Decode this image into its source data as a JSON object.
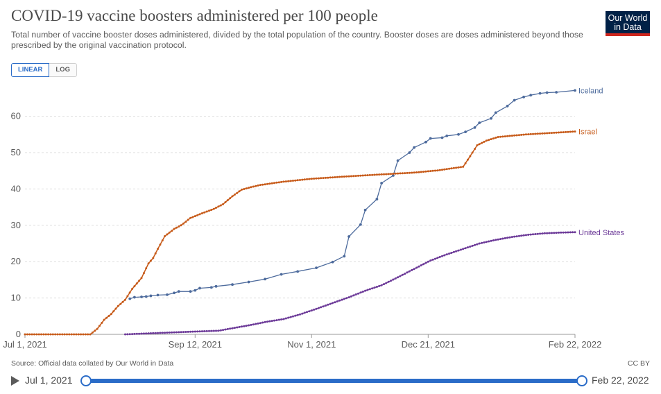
{
  "header": {
    "title": "COVID-19 vaccine boosters administered per 100 people",
    "subtitle": "Total number of vaccine booster doses administered, divided by the total population of the country. Booster doses are doses administered beyond those prescribed by the original vaccination protocol.",
    "logo_line1": "Our World",
    "logo_line2": "in Data"
  },
  "scale_toggle": {
    "linear": "LINEAR",
    "log": "LOG",
    "selected": "LINEAR"
  },
  "footer": {
    "source": "Source: Official data collated by Our World in Data",
    "license": "CC BY"
  },
  "timeline": {
    "start_label": "Jul 1, 2021",
    "end_label": "Feb 22, 2022"
  },
  "chart_data": {
    "type": "line",
    "title": "COVID-19 vaccine boosters administered per 100 people",
    "x_type": "date",
    "x_range": [
      "2021-07-01",
      "2022-02-22"
    ],
    "x_ticks": [
      {
        "date": "2021-07-01",
        "label": "Jul 1, 2021"
      },
      {
        "date": "2021-09-12",
        "label": "Sep 12, 2021"
      },
      {
        "date": "2021-11-01",
        "label": "Nov 1, 2021"
      },
      {
        "date": "2021-12-21",
        "label": "Dec 21, 2021"
      },
      {
        "date": "2022-02-22",
        "label": "Feb 22, 2022"
      }
    ],
    "ylim": [
      0,
      67
    ],
    "y_ticks": [
      0,
      10,
      20,
      30,
      40,
      50,
      60
    ],
    "grid": true,
    "scale": "linear",
    "series": [
      {
        "name": "Iceland",
        "color": "#4c6a9c",
        "markers": "sparse",
        "points": [
          [
            "2021-08-15",
            9.8
          ],
          [
            "2021-08-17",
            10.2
          ],
          [
            "2021-08-20",
            10.3
          ],
          [
            "2021-08-22",
            10.4
          ],
          [
            "2021-08-24",
            10.6
          ],
          [
            "2021-08-27",
            10.8
          ],
          [
            "2021-08-31",
            10.9
          ],
          [
            "2021-09-03",
            11.4
          ],
          [
            "2021-09-05",
            11.8
          ],
          [
            "2021-09-10",
            11.8
          ],
          [
            "2021-09-12",
            12.1
          ],
          [
            "2021-09-14",
            12.7
          ],
          [
            "2021-09-19",
            12.9
          ],
          [
            "2021-09-21",
            13.2
          ],
          [
            "2021-09-28",
            13.7
          ],
          [
            "2021-10-05",
            14.4
          ],
          [
            "2021-10-12",
            15.2
          ],
          [
            "2021-10-19",
            16.5
          ],
          [
            "2021-10-26",
            17.3
          ],
          [
            "2021-11-03",
            18.3
          ],
          [
            "2021-11-10",
            19.9
          ],
          [
            "2021-11-15",
            21.5
          ],
          [
            "2021-11-17",
            26.9
          ],
          [
            "2021-11-22",
            30.2
          ],
          [
            "2021-11-24",
            34.2
          ],
          [
            "2021-11-29",
            37.2
          ],
          [
            "2021-12-01",
            41.6
          ],
          [
            "2021-12-06",
            43.7
          ],
          [
            "2021-12-08",
            47.8
          ],
          [
            "2021-12-13",
            50.0
          ],
          [
            "2021-12-15",
            51.4
          ],
          [
            "2021-12-20",
            52.9
          ],
          [
            "2021-12-22",
            53.9
          ],
          [
            "2021-12-27",
            54.1
          ],
          [
            "2021-12-29",
            54.6
          ],
          [
            "2022-01-03",
            55.0
          ],
          [
            "2022-01-06",
            55.7
          ],
          [
            "2022-01-10",
            56.9
          ],
          [
            "2022-01-12",
            58.2
          ],
          [
            "2022-01-17",
            59.4
          ],
          [
            "2022-01-19",
            61.0
          ],
          [
            "2022-01-24",
            62.8
          ],
          [
            "2022-01-27",
            64.4
          ],
          [
            "2022-01-31",
            65.3
          ],
          [
            "2022-02-03",
            65.8
          ],
          [
            "2022-02-07",
            66.3
          ],
          [
            "2022-02-10",
            66.5
          ],
          [
            "2022-02-14",
            66.6
          ],
          [
            "2022-02-22",
            67.1
          ]
        ]
      },
      {
        "name": "Israel",
        "color": "#c75b1a",
        "markers": "dense",
        "points": [
          [
            "2021-07-01",
            0
          ],
          [
            "2021-07-29",
            0
          ],
          [
            "2021-08-01",
            1.5
          ],
          [
            "2021-08-04",
            4.0
          ],
          [
            "2021-08-07",
            5.6
          ],
          [
            "2021-08-10",
            7.8
          ],
          [
            "2021-08-13",
            9.5
          ],
          [
            "2021-08-16",
            12.5
          ],
          [
            "2021-08-20",
            15.5
          ],
          [
            "2021-08-23",
            19.5
          ],
          [
            "2021-08-25",
            21.0
          ],
          [
            "2021-08-27",
            23.5
          ],
          [
            "2021-08-30",
            27.0
          ],
          [
            "2021-09-03",
            29.0
          ],
          [
            "2021-09-06",
            30.0
          ],
          [
            "2021-09-10",
            32.0
          ],
          [
            "2021-09-15",
            33.3
          ],
          [
            "2021-09-20",
            34.5
          ],
          [
            "2021-09-24",
            35.8
          ],
          [
            "2021-09-28",
            38.0
          ],
          [
            "2021-10-02",
            39.8
          ],
          [
            "2021-10-06",
            40.5
          ],
          [
            "2021-10-10",
            41.1
          ],
          [
            "2021-10-20",
            42.0
          ],
          [
            "2021-11-01",
            42.8
          ],
          [
            "2021-11-15",
            43.4
          ],
          [
            "2021-12-01",
            44.0
          ],
          [
            "2021-12-15",
            44.5
          ],
          [
            "2021-12-25",
            45.1
          ],
          [
            "2022-01-05",
            46.1
          ],
          [
            "2022-01-08",
            49.0
          ],
          [
            "2022-01-11",
            52.0
          ],
          [
            "2022-01-15",
            53.3
          ],
          [
            "2022-01-20",
            54.3
          ],
          [
            "2022-02-01",
            55.0
          ],
          [
            "2022-02-22",
            55.8
          ]
        ]
      },
      {
        "name": "United States",
        "color": "#6c3a98",
        "markers": "dense",
        "points": [
          [
            "2021-08-13",
            0
          ],
          [
            "2021-09-01",
            0.5
          ],
          [
            "2021-09-22",
            1.0
          ],
          [
            "2021-09-29",
            1.8
          ],
          [
            "2021-10-06",
            2.6
          ],
          [
            "2021-10-13",
            3.5
          ],
          [
            "2021-10-20",
            4.2
          ],
          [
            "2021-10-27",
            5.5
          ],
          [
            "2021-11-03",
            7.0
          ],
          [
            "2021-11-10",
            8.6
          ],
          [
            "2021-11-17",
            10.2
          ],
          [
            "2021-11-24",
            12.0
          ],
          [
            "2021-12-01",
            13.5
          ],
          [
            "2021-12-08",
            15.7
          ],
          [
            "2021-12-15",
            18.0
          ],
          [
            "2021-12-22",
            20.3
          ],
          [
            "2021-12-29",
            22.0
          ],
          [
            "2022-01-05",
            23.5
          ],
          [
            "2022-01-12",
            25.0
          ],
          [
            "2022-01-19",
            26.0
          ],
          [
            "2022-01-26",
            26.8
          ],
          [
            "2022-02-02",
            27.4
          ],
          [
            "2022-02-09",
            27.8
          ],
          [
            "2022-02-16",
            28.0
          ],
          [
            "2022-02-22",
            28.1
          ]
        ]
      }
    ]
  }
}
